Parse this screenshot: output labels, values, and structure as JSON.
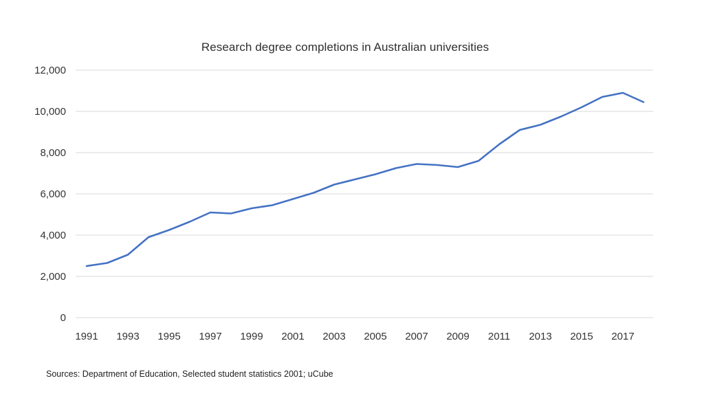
{
  "chart_data": {
    "type": "line",
    "title": "Research degree completions in Australian universities",
    "xlabel": "",
    "ylabel": "",
    "x": [
      1991,
      1992,
      1993,
      1994,
      1995,
      1996,
      1997,
      1998,
      1999,
      2000,
      2001,
      2002,
      2003,
      2004,
      2005,
      2006,
      2007,
      2008,
      2009,
      2010,
      2011,
      2012,
      2013,
      2014,
      2015,
      2016,
      2017,
      2018
    ],
    "values": [
      2500,
      2650,
      3050,
      3900,
      4250,
      4650,
      5100,
      5050,
      5300,
      5450,
      5750,
      6050,
      6450,
      6700,
      6950,
      7250,
      7450,
      7400,
      7300,
      7600,
      8400,
      9100,
      9350,
      9750,
      10200,
      10700,
      10900,
      10450
    ],
    "x_tick_labels": [
      "1991",
      "1993",
      "1995",
      "1997",
      "1999",
      "2001",
      "2003",
      "2005",
      "2007",
      "2009",
      "2011",
      "2013",
      "2015",
      "2017"
    ],
    "y_ticks": [
      0,
      2000,
      4000,
      6000,
      8000,
      10000,
      12000
    ],
    "ylim": [
      0,
      12000
    ],
    "grid": "horizontal",
    "legend": "none",
    "line_color": "#4472C4",
    "gridline_color": "#D9D9D9",
    "tick_label_color": "#333333",
    "source_note": "Sources: Department of Education, Selected student statistics 2001; uCube"
  }
}
